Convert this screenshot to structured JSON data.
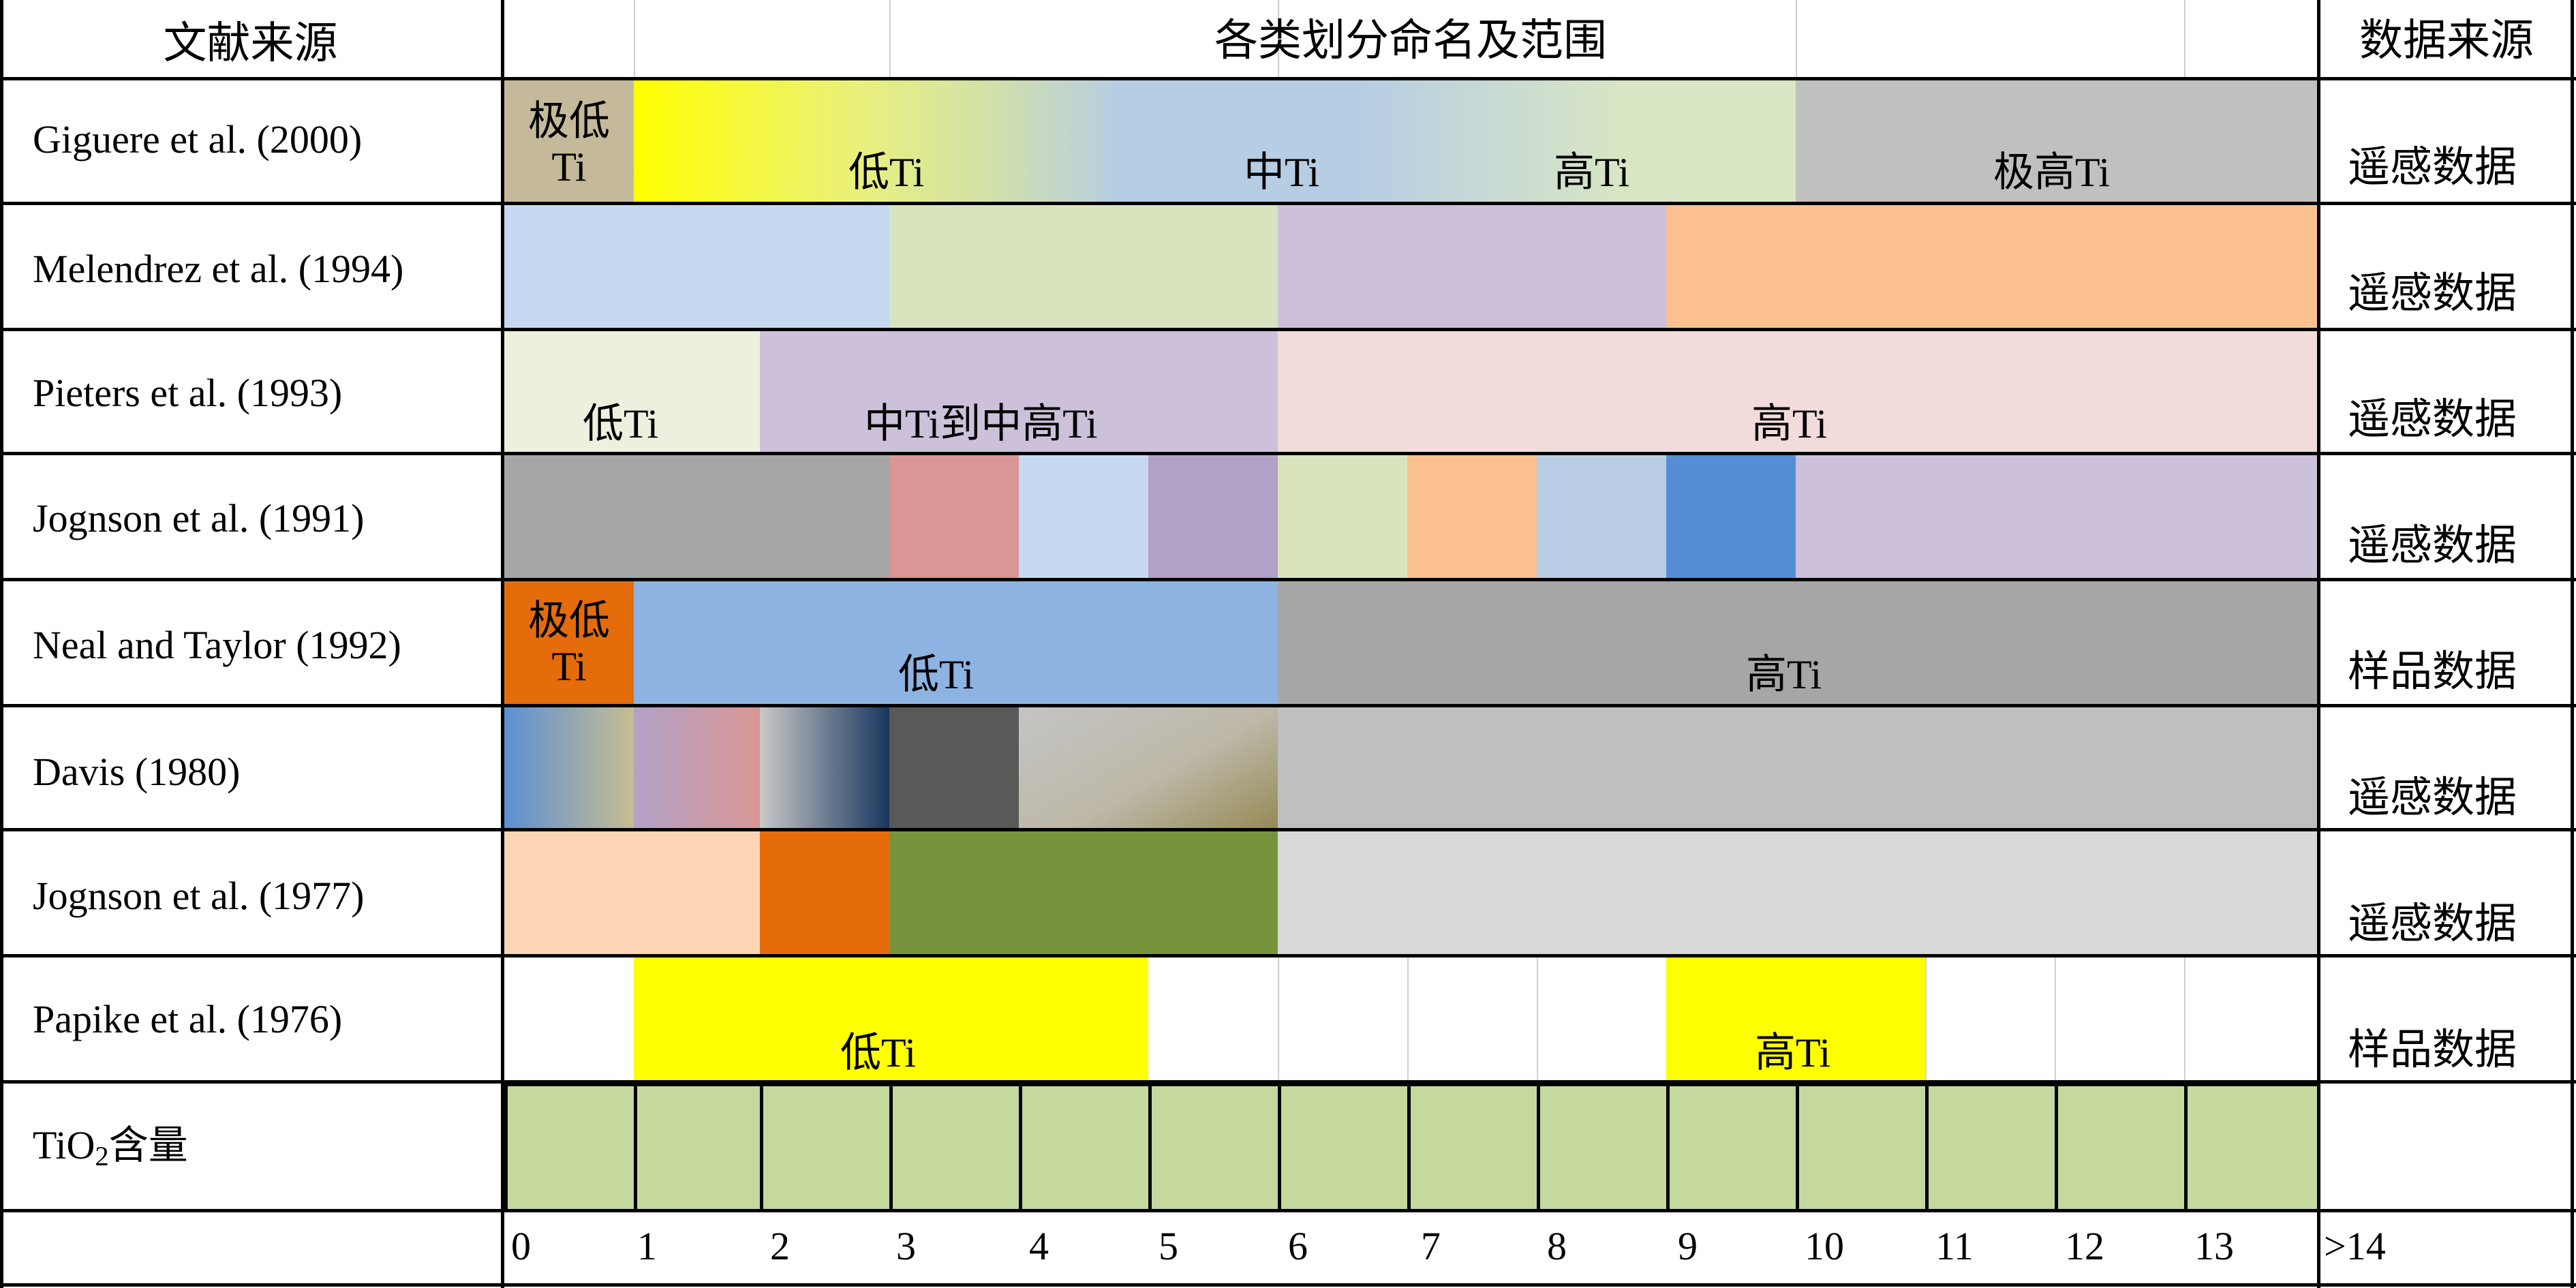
{
  "header": {
    "literature_source": "文献来源",
    "classification": "各类划分命名及范围",
    "data_source": "数据来源"
  },
  "rows": [
    {
      "reference": "Giguere et al. (2000)",
      "data_source": "遥感数据",
      "labels": [
        "极低Ti",
        "低Ti",
        "中Ti",
        "高Ti",
        "极高Ti"
      ]
    },
    {
      "reference": "Melendrez et al. (1994)",
      "data_source": "遥感数据",
      "labels": []
    },
    {
      "reference": "Pieters et al. (1993)",
      "data_source": "遥感数据",
      "labels": [
        "低Ti",
        "中Ti到中高Ti",
        "高Ti"
      ]
    },
    {
      "reference": "Jognson et al. (1991)",
      "data_source": "遥感数据",
      "labels": []
    },
    {
      "reference": "Neal and Taylor (1992)",
      "data_source": "样品数据",
      "labels": [
        "极低Ti",
        "低Ti",
        "高Ti"
      ]
    },
    {
      "reference": "Davis (1980)",
      "data_source": "遥感数据",
      "labels": []
    },
    {
      "reference": "Jognson et al. (1977)",
      "data_source": "遥感数据",
      "labels": []
    },
    {
      "reference": "Papike et al. (1976)",
      "data_source": "样品数据",
      "labels": [
        "低Ti",
        "高Ti"
      ]
    }
  ],
  "tio2_row": {
    "label_prefix": "TiO",
    "label_sub": "2",
    "label_suffix": "含量"
  },
  "axis_ticks": [
    "0",
    "1",
    "2",
    "3",
    "4",
    "5",
    "6",
    "7",
    "8",
    "9",
    "10",
    "11",
    "12",
    "13",
    ">14"
  ],
  "colors": {
    "tio2_cell": "#c5d89e",
    "yellow": "#ffff00",
    "gray": "#c0c0c0",
    "orange": "#e46c0a",
    "blue": "#8db3e2",
    "olive": "#77933c"
  }
}
